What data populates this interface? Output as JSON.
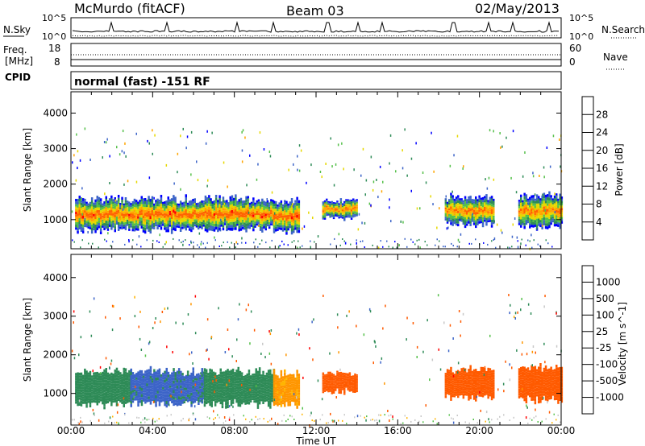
{
  "header": {
    "station": "McMurdo (fitACF)",
    "beam": "Beam 03",
    "date": "02/May/2013"
  },
  "status_panel": {
    "left_label": "N.Sky",
    "left_ticks": [
      "10^5",
      "10^0"
    ],
    "right_ticks": [
      "10^5",
      "10^0"
    ],
    "right_label": "N.Search"
  },
  "freq_panel": {
    "label_top": "Freq.",
    "label_bottom": "[MHz]",
    "left_ticks": [
      "18",
      "8"
    ],
    "right_ticks": [
      "60",
      "0"
    ],
    "right_label": "Nave",
    "cpid_label": "CPID"
  },
  "mode_text": "normal (fast) -151 RF",
  "xaxis": {
    "ticks": [
      "00:00",
      "04:00",
      "08:00",
      "12:00",
      "16:00",
      "20:00",
      "00:00"
    ],
    "label": "Time UT"
  },
  "colors": {
    "power": [
      "#0000ff",
      "#3c64c8",
      "#2e8b57",
      "#55c04a",
      "#e6d800",
      "#ffa500",
      "#ff6400",
      "#ff0000"
    ],
    "velocity": [
      "#ff0000",
      "#ff5a00",
      "#ff9600",
      "#ffb400",
      "#c8c8c8",
      "#55c04a",
      "#2e8b57",
      "#3c64c8",
      "#0000c8"
    ]
  },
  "chart_data": [
    {
      "type": "heatmap",
      "panel": "power",
      "ylabel": "Slant Range [km]",
      "yticks": [
        "1000",
        "2000",
        "3000",
        "4000"
      ],
      "y_range_km": [
        180,
        4600
      ],
      "x_range_hours": [
        0,
        24
      ],
      "colorbar": {
        "label": "Power [dB]",
        "ticks": [
          "4",
          "8",
          "12",
          "16",
          "20",
          "24",
          "28"
        ],
        "range": [
          0,
          32
        ]
      },
      "echo_regions": [
        {
          "t_start": 0.2,
          "t_end": 9.9,
          "center_km": 1150,
          "half_width_km": 450,
          "peak_db": 28
        },
        {
          "t_start": 9.9,
          "t_end": 11.2,
          "center_km": 1100,
          "half_width_km": 450,
          "peak_db": 28
        },
        {
          "t_start": 12.3,
          "t_end": 14.0,
          "center_km": 1300,
          "half_width_km": 250,
          "peak_db": 26
        },
        {
          "t_start": 18.3,
          "t_end": 20.7,
          "center_km": 1250,
          "half_width_km": 400,
          "peak_db": 26
        },
        {
          "t_start": 21.9,
          "t_end": 24.0,
          "center_km": 1250,
          "half_width_km": 450,
          "peak_db": 26
        }
      ]
    },
    {
      "type": "heatmap",
      "panel": "velocity",
      "ylabel": "Slant Range [km]",
      "yticks": [
        "1000",
        "2000",
        "3000",
        "4000"
      ],
      "y_range_km": [
        180,
        4600
      ],
      "x_range_hours": [
        0,
        24
      ],
      "colorbar": {
        "label": "Velocity [m s^-1]",
        "ticks": [
          "1000",
          "500",
          "100",
          "25",
          "-25",
          "-100",
          "-500",
          "-1000"
        ]
      },
      "echo_regions": [
        {
          "t_start": 0.2,
          "t_end": 2.9,
          "center_km": 1150,
          "half_width_km": 450,
          "velocity": 300
        },
        {
          "t_start": 2.9,
          "t_end": 6.5,
          "center_km": 1150,
          "half_width_km": 450,
          "velocity": 600
        },
        {
          "t_start": 6.5,
          "t_end": 9.9,
          "center_km": 1150,
          "half_width_km": 450,
          "velocity": 300
        },
        {
          "t_start": 9.9,
          "t_end": 11.2,
          "center_km": 1100,
          "half_width_km": 450,
          "velocity": -60
        },
        {
          "t_start": 12.3,
          "t_end": 14.0,
          "center_km": 1300,
          "half_width_km": 250,
          "velocity": -200
        },
        {
          "t_start": 18.3,
          "t_end": 20.7,
          "center_km": 1250,
          "half_width_km": 400,
          "velocity": -200
        },
        {
          "t_start": 21.9,
          "t_end": 24.0,
          "center_km": 1250,
          "half_width_km": 450,
          "velocity": -150
        }
      ]
    }
  ]
}
